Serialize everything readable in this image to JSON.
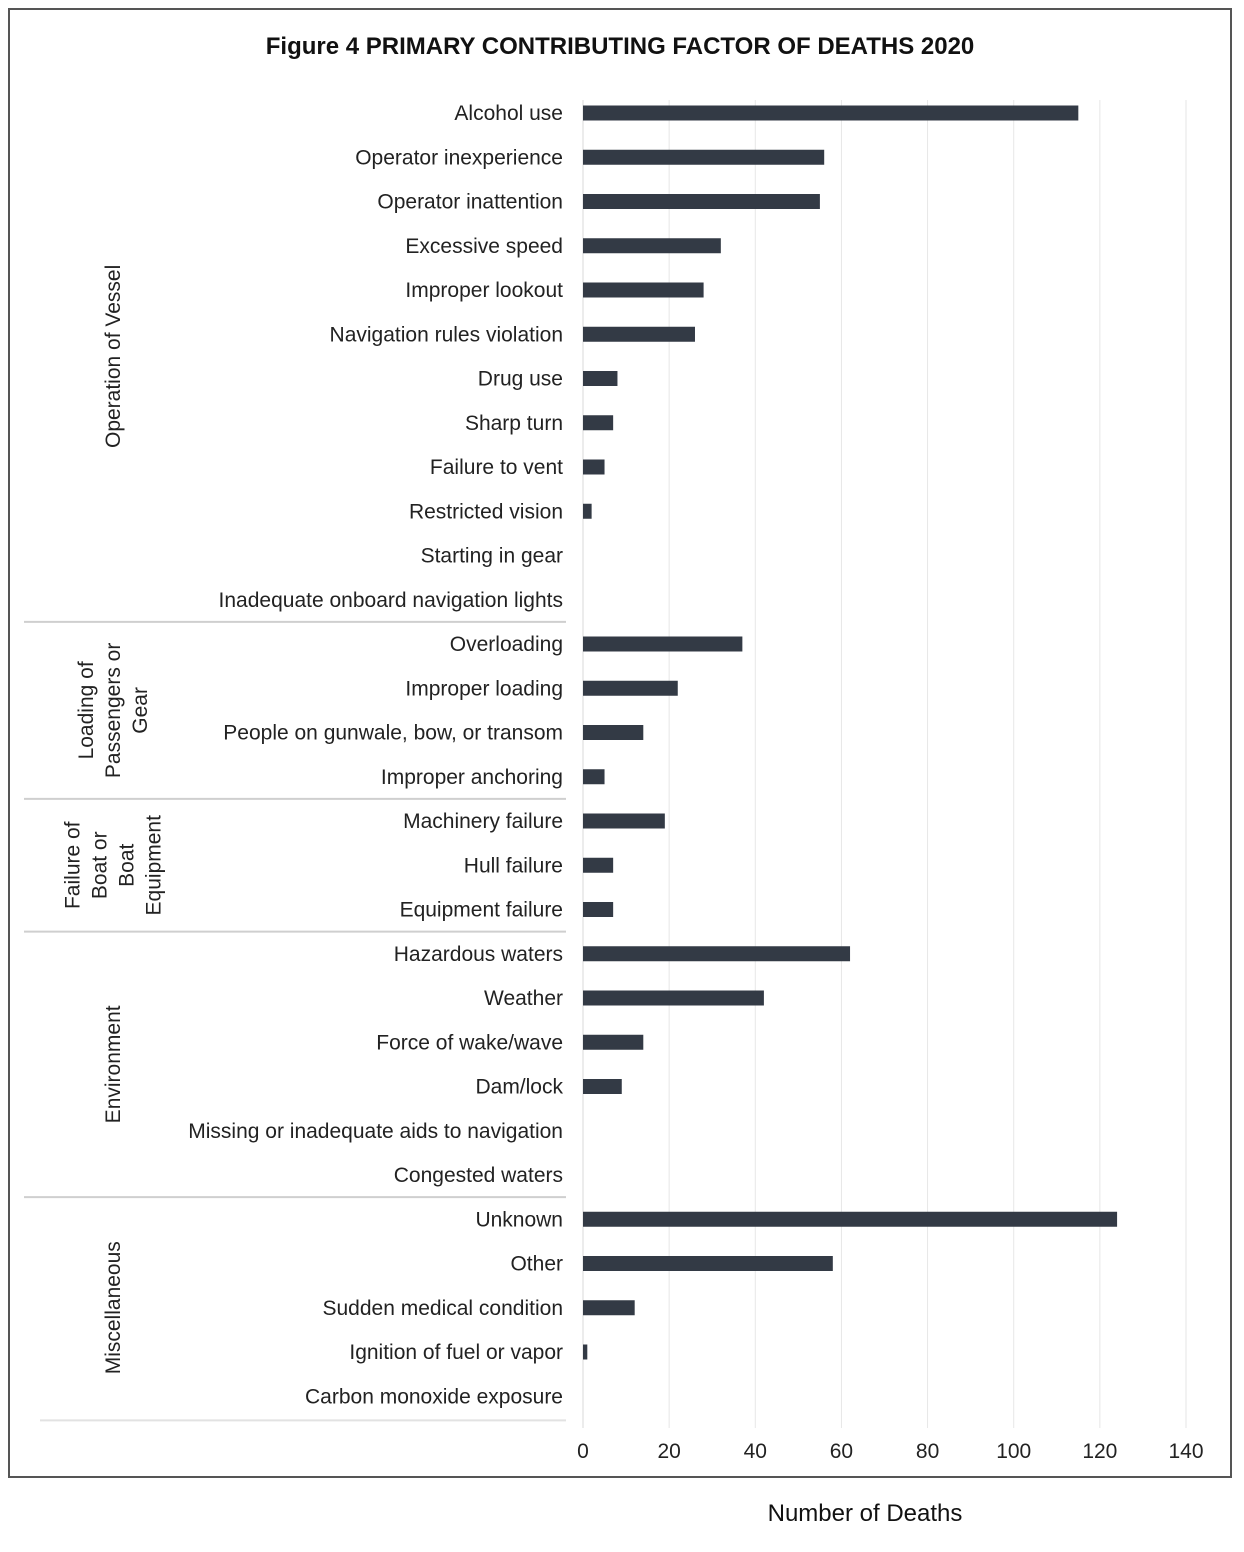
{
  "chart_data": {
    "type": "bar",
    "orientation": "horizontal",
    "title": "Figure 4 PRIMARY CONTRIBUTING FACTOR OF DEATHS 2020",
    "xlabel": "Number of Deaths",
    "ylabel": "",
    "xlim": [
      0,
      140
    ],
    "xticks": [
      "0",
      "20",
      "40",
      "60",
      "80",
      "100",
      "120",
      "140"
    ],
    "grid": "vertical",
    "legend": "none",
    "bar_color": "#333a45",
    "groups": [
      {
        "name": [
          "Operation of Vessel"
        ],
        "first": 0,
        "last": 11
      },
      {
        "name": [
          "Loading of",
          "Passengers or",
          "Gear"
        ],
        "first": 12,
        "last": 15
      },
      {
        "name": [
          "Failure of",
          "Boat or",
          "Boat",
          "Equipment"
        ],
        "first": 16,
        "last": 18
      },
      {
        "name": [
          "Environment"
        ],
        "first": 19,
        "last": 24
      },
      {
        "name": [
          "Miscellaneous"
        ],
        "first": 25,
        "last": 29
      }
    ],
    "categories": [
      "Alcohol use",
      "Operator inexperience",
      "Operator inattention",
      "Excessive speed",
      "Improper lookout",
      "Navigation rules violation",
      "Drug use",
      "Sharp turn",
      "Failure to vent",
      "Restricted vision",
      "Starting in gear",
      "Inadequate onboard navigation lights",
      "Overloading",
      "Improper loading",
      "People on gunwale, bow, or transom",
      "Improper anchoring",
      "Machinery failure",
      "Hull failure",
      "Equipment failure",
      "Hazardous waters",
      "Weather",
      "Force of wake/wave",
      "Dam/lock",
      "Missing or inadequate aids to navigation",
      "Congested waters",
      "Unknown",
      "Other",
      "Sudden medical condition",
      "Ignition of fuel or vapor",
      "Carbon monoxide exposure"
    ],
    "values": [
      115,
      56,
      55,
      32,
      28,
      26,
      8,
      7,
      5,
      2,
      0,
      0,
      37,
      22,
      14,
      5,
      19,
      7,
      7,
      62,
      42,
      14,
      9,
      0,
      0,
      124,
      58,
      12,
      1,
      0
    ]
  }
}
